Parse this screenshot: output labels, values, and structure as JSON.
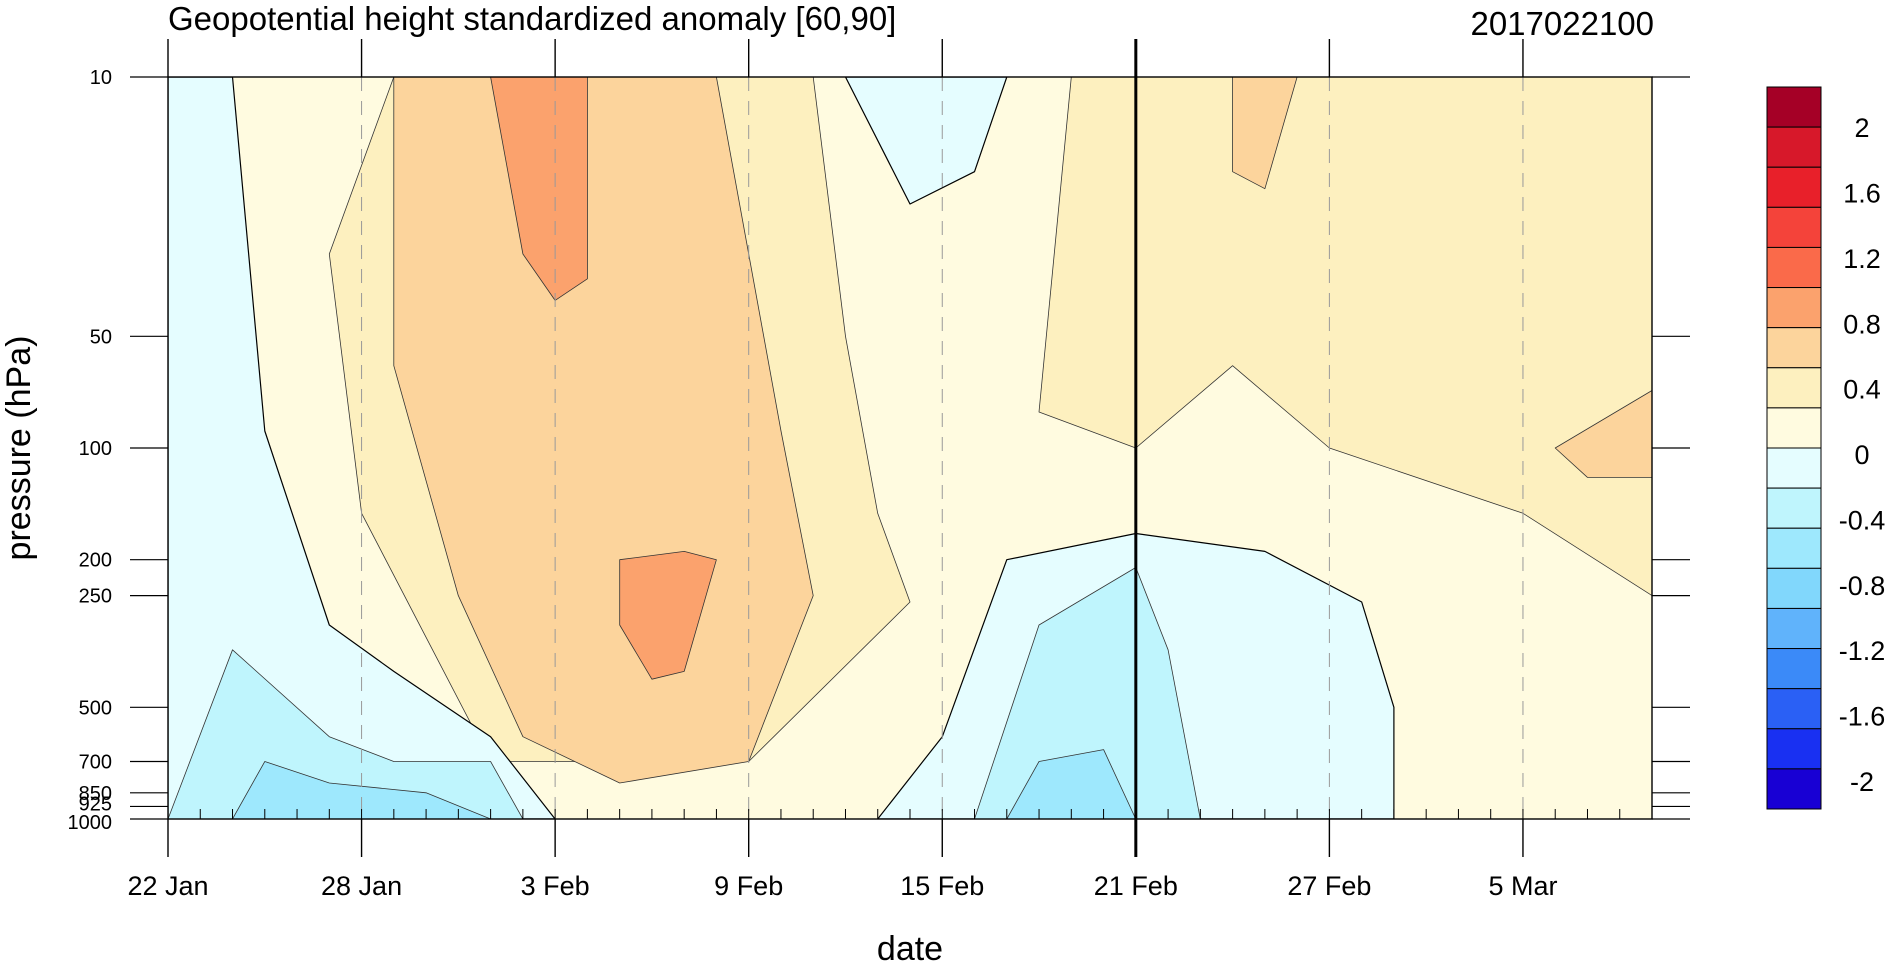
{
  "chart_data": {
    "type": "heatmap",
    "title": "Geopotential height standardized anomaly [60,90]",
    "date_label": "2017022100",
    "xlabel": "date",
    "ylabel": "pressure (hPa)",
    "x_start": "2017-01-22",
    "x_end": "2017-03-09",
    "x_marker": "2017-02-21",
    "y_scale": "log",
    "y_range": [
      1000,
      10
    ],
    "x_tick_labels": [
      "22 Jan",
      "28 Jan",
      "3 Feb",
      "9 Feb",
      "15 Feb",
      "21 Feb",
      "27 Feb",
      "5 Mar"
    ],
    "x_tick_dates": [
      "2017-01-22",
      "2017-01-28",
      "2017-02-03",
      "2017-02-09",
      "2017-02-15",
      "2017-02-21",
      "2017-02-27",
      "2017-03-05"
    ],
    "y_tick_labels": [
      "10",
      "50",
      "100",
      "200",
      "250",
      "500",
      "700",
      "850",
      "925",
      "1000"
    ],
    "y_tick_values": [
      10,
      50,
      100,
      200,
      250,
      500,
      700,
      850,
      925,
      1000
    ],
    "colorbar": {
      "labels": [
        "2",
        "1.6",
        "1.2",
        "0.8",
        "0.4",
        "0",
        "-0.4",
        "-0.8",
        "-1.2",
        "-1.6",
        "-2"
      ],
      "colors_top_to_bottom": [
        "#a50026",
        "#d7182a",
        "#e8202a",
        "#f4433a",
        "#fa6a4a",
        "#fba26d",
        "#fcd49c",
        "#fdf0bf",
        "#fffbe0",
        "#e5fdff",
        "#bff5fd",
        "#9ee8fd",
        "#81d7fc",
        "#60b3fb",
        "#3b8af8",
        "#2a60f5",
        "#1930f2",
        "#1800d4"
      ]
    },
    "fields": [
      {
        "level": 0.4,
        "color": "#fdf0bf",
        "polygon": [
          [
            "2017-01-29",
            10
          ],
          [
            "2017-02-08",
            10
          ],
          [
            "2017-02-11",
            10
          ],
          [
            "2017-02-12",
            50
          ],
          [
            "2017-02-13",
            150
          ],
          [
            "2017-02-14",
            260
          ],
          [
            "2017-02-09",
            700
          ],
          [
            "2017-02-01",
            700
          ],
          [
            "2017-01-28",
            150
          ],
          [
            "2017-01-27",
            30
          ]
        ]
      },
      {
        "level": 0.4,
        "color": "#fdf0bf",
        "polygon": [
          [
            "2017-02-19",
            10
          ],
          [
            "2017-03-09",
            10
          ],
          [
            "2017-03-09",
            250
          ],
          [
            "2017-03-05",
            150
          ],
          [
            "2017-02-27",
            100
          ],
          [
            "2017-02-24",
            60
          ],
          [
            "2017-02-21",
            100
          ],
          [
            "2017-02-18",
            80
          ]
        ]
      },
      {
        "level": 0.8,
        "color": "#fcd49c",
        "polygon": [
          [
            "2017-01-29",
            10
          ],
          [
            "2017-02-08",
            10
          ],
          [
            "2017-02-10",
            90
          ],
          [
            "2017-02-11",
            250
          ],
          [
            "2017-02-09",
            700
          ],
          [
            "2017-02-05",
            800
          ],
          [
            "2017-02-02",
            600
          ],
          [
            "2017-01-31",
            250
          ],
          [
            "2017-01-29",
            60
          ]
        ]
      },
      {
        "level": 0.8,
        "color": "#fcd49c",
        "polygon": [
          [
            "2017-03-06",
            100
          ],
          [
            "2017-03-09",
            70
          ],
          [
            "2017-03-09",
            120
          ],
          [
            "2017-03-07",
            120
          ]
        ]
      },
      {
        "level": 0.8,
        "color": "#fcd49c",
        "polygon": [
          [
            "2017-02-24",
            10
          ],
          [
            "2017-02-26",
            10
          ],
          [
            "2017-02-25",
            20
          ],
          [
            "2017-02-24",
            18
          ]
        ]
      },
      {
        "level": 1.2,
        "color": "#fba26d",
        "polygon": [
          [
            "2017-02-01",
            10
          ],
          [
            "2017-02-04",
            10
          ],
          [
            "2017-02-04",
            35
          ],
          [
            "2017-02-03",
            40
          ],
          [
            "2017-02-02",
            30
          ]
        ]
      },
      {
        "level": 1.2,
        "color": "#fba26d",
        "polygon": [
          [
            "2017-02-05",
            200
          ],
          [
            "2017-02-07",
            190
          ],
          [
            "2017-02-08",
            200
          ],
          [
            "2017-02-07",
            400
          ],
          [
            "2017-02-06",
            420
          ],
          [
            "2017-02-05",
            300
          ]
        ]
      },
      {
        "level": -0.4,
        "color": "#e5fdff",
        "polygon": [
          [
            "2017-01-22",
            10
          ],
          [
            "2017-01-24",
            10
          ],
          [
            "2017-01-25",
            90
          ],
          [
            "2017-01-27",
            300
          ],
          [
            "2017-01-29",
            400
          ],
          [
            "2017-02-01",
            600
          ],
          [
            "2017-02-03",
            1000
          ],
          [
            "2017-01-22",
            1000
          ]
        ]
      },
      {
        "level": -0.4,
        "color": "#e5fdff",
        "polygon": [
          [
            "2017-02-12",
            10
          ],
          [
            "2017-02-17",
            10
          ],
          [
            "2017-02-16",
            18
          ],
          [
            "2017-02-14",
            22
          ]
        ]
      },
      {
        "level": -0.4,
        "color": "#e5fdff",
        "polygon": [
          [
            "2017-02-13",
            1000
          ],
          [
            "2017-02-15",
            600
          ],
          [
            "2017-02-17",
            200
          ],
          [
            "2017-02-21",
            170
          ],
          [
            "2017-02-25",
            190
          ],
          [
            "2017-02-28",
            260
          ],
          [
            "2017-03-01",
            500
          ],
          [
            "2017-03-01",
            1000
          ]
        ]
      },
      {
        "level": -0.8,
        "color": "#bff5fd",
        "polygon": [
          [
            "2017-01-22",
            1000
          ],
          [
            "2017-01-24",
            350
          ],
          [
            "2017-01-27",
            600
          ],
          [
            "2017-01-29",
            700
          ],
          [
            "2017-02-01",
            700
          ],
          [
            "2017-02-02",
            1000
          ]
        ]
      },
      {
        "level": -0.8,
        "color": "#bff5fd",
        "polygon": [
          [
            "2017-02-16",
            1000
          ],
          [
            "2017-02-18",
            300
          ],
          [
            "2017-02-21",
            210
          ],
          [
            "2017-02-22",
            350
          ],
          [
            "2017-02-23",
            1000
          ]
        ]
      },
      {
        "level": -1.2,
        "color": "#9ee8fd",
        "polygon": [
          [
            "2017-01-24",
            1000
          ],
          [
            "2017-01-25",
            700
          ],
          [
            "2017-01-27",
            800
          ],
          [
            "2017-01-30",
            850
          ],
          [
            "2017-02-01",
            1000
          ]
        ]
      },
      {
        "level": -1.2,
        "color": "#9ee8fd",
        "polygon": [
          [
            "2017-02-17",
            1000
          ],
          [
            "2017-02-18",
            700
          ],
          [
            "2017-02-20",
            650
          ],
          [
            "2017-02-21",
            1000
          ]
        ]
      }
    ]
  }
}
